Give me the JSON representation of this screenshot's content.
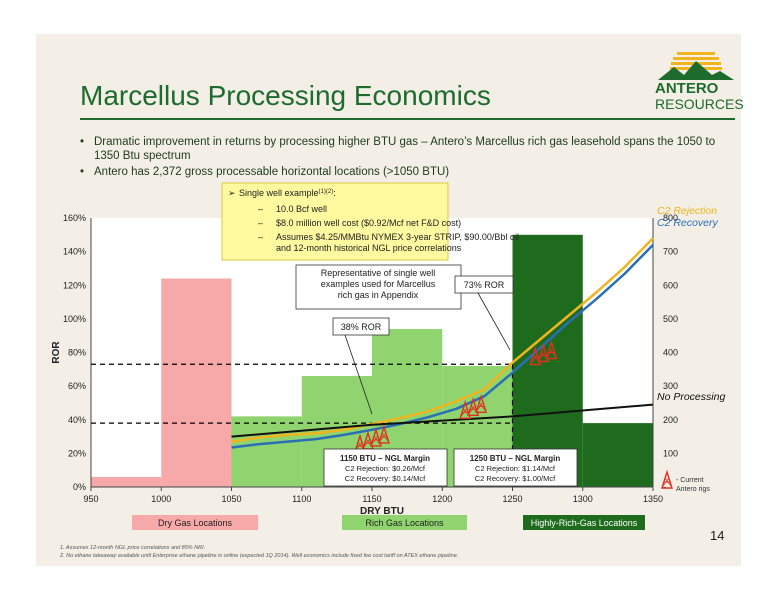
{
  "title": "Marcellus Processing Economics",
  "logo": {
    "line1": "ANTERO",
    "line2": "RESOURCES"
  },
  "bullets": [
    "Dramatic improvement in returns by processing higher BTU gas – Antero’s Marcellus rich gas leasehold spans the 1050 to 1350 Btu spectrum",
    "Antero has 2,372 gross processable horizontal locations (>1050 BTU)"
  ],
  "page_number": "14",
  "footnotes": [
    "1.    Assumes 12-month NGL price correlations and 85% NRI.",
    "2.    No ethane takeaway available until Enterprise ethane pipeline is online (expected 1Q 2014). Well economics include fixed fee cost tariff on ATEX ethane pipeline."
  ],
  "colors": {
    "dry": "#f7a8a8",
    "rich": "#8fd46e",
    "highly_rich": "#1e6b1e",
    "c2_rejection": "#f0b41e",
    "c2_recovery": "#2a6fb5",
    "no_processing": "#111111",
    "title_green": "#1d6b2d"
  },
  "chart_data": {
    "type": "bar",
    "xlabel": "DRY BTU",
    "ylabel": "ROR",
    "x_ticks": [
      950,
      1000,
      1050,
      1100,
      1150,
      1200,
      1250,
      1300,
      1350
    ],
    "xlim": [
      950,
      1350
    ],
    "y_left_ticks": [
      "0%",
      "20%",
      "40%",
      "60%",
      "80%",
      "100%",
      "120%",
      "140%",
      "160%"
    ],
    "y_left_lim": [
      0,
      160
    ],
    "y_right_ticks": [
      "-",
      "100",
      "200",
      "300",
      "400",
      "500",
      "600",
      "700",
      "800"
    ],
    "y_right_lim": [
      0,
      800
    ],
    "bars": [
      {
        "x0": 950,
        "x1": 1000,
        "value": 6,
        "group": "dry"
      },
      {
        "x0": 1000,
        "x1": 1050,
        "value": 124,
        "group": "dry"
      },
      {
        "x0": 1050,
        "x1": 1100,
        "value": 42,
        "group": "rich"
      },
      {
        "x0": 1100,
        "x1": 1150,
        "value": 66,
        "group": "rich"
      },
      {
        "x0": 1150,
        "x1": 1200,
        "value": 94,
        "group": "rich"
      },
      {
        "x0": 1200,
        "x1": 1250,
        "value": 72,
        "group": "rich"
      },
      {
        "x0": 1250,
        "x1": 1300,
        "value": 150,
        "group": "highly_rich"
      },
      {
        "x0": 1300,
        "x1": 1350,
        "value": 38,
        "group": "highly_rich"
      }
    ],
    "series": [
      {
        "name": "C2 Rejection",
        "x": [
          1050,
          1070,
          1090,
          1110,
          1130,
          1150,
          1170,
          1190,
          1210,
          1230,
          1250,
          1270,
          1290,
          1310,
          1330,
          1350
        ],
        "values": [
          27,
          29.5,
          31,
          32,
          34,
          37.5,
          41,
          45,
          51,
          58,
          74,
          88,
          102,
          116,
          131,
          148
        ]
      },
      {
        "name": "C2 Recovery",
        "x": [
          1050,
          1070,
          1090,
          1110,
          1130,
          1150,
          1170,
          1190,
          1210,
          1230,
          1250,
          1270,
          1290,
          1310,
          1330,
          1350
        ],
        "values": [
          23.5,
          25.5,
          27,
          28.5,
          31,
          34,
          37.5,
          41.5,
          46.5,
          54,
          68,
          83,
          98,
          112,
          127,
          144
        ]
      },
      {
        "name": "No Processing",
        "x": [
          1050,
          1150,
          1250,
          1350
        ],
        "values": [
          30,
          37,
          42,
          49
        ]
      }
    ],
    "reference_lines": [
      {
        "y": 38,
        "label": "38% ROR"
      },
      {
        "y": 73,
        "label": "73% ROR"
      }
    ],
    "vlines": [
      1250
    ],
    "legend": {
      "c2_rejection": "C2 Rejection",
      "c2_recovery": "C2 Recovery",
      "no_processing": "No Processing",
      "rigs_line1": "- Current",
      "rigs_line2": "Antero rigs"
    },
    "rigs": [
      {
        "x": 1150,
        "y": 28,
        "count": 4
      },
      {
        "x": 1222,
        "y": 48,
        "count": 3
      },
      {
        "x": 1272,
        "y": 80,
        "count": 3
      }
    ],
    "single_well_box": {
      "title": "Single well example",
      "title_sup": "(1)(2)",
      "items": [
        "10.0 Bcf well",
        "$8.0 million well cost ($0.92/Mcf net F&D cost)",
        "Assumes $4.25/MMBtu NYMEX 3-year STRIP, $90.00/Bbl oil",
        "and 12-month historical NGL price correlations"
      ]
    },
    "representative_note": [
      "Representative of single well",
      "examples used for Marcellus",
      "rich gas in Appendix"
    ],
    "margin_boxes": [
      {
        "title": "1150 BTU – NGL Margin",
        "line1": "C2 Rejection: $0.26/Mcf",
        "line2": "C2 Recovery: $0.14/Mcf"
      },
      {
        "title": "1250 BTU – NGL Margin",
        "line1": "C2 Rejection: $1.14/Mcf",
        "line2": "C2 Recovery: $1.00/Mcf"
      }
    ],
    "category_labels": [
      "Dry Gas Locations",
      "Rich Gas Locations",
      "Highly-Rich-Gas Locations"
    ]
  }
}
